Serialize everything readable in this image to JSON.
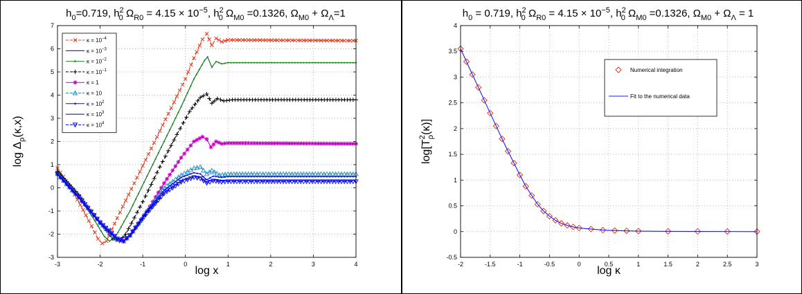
{
  "figure": {
    "border_color": "#000000"
  },
  "chart_data": [
    {
      "type": "line",
      "title": "h0=0.719, h0² ΩR0 = 4.15 × 10⁻⁵, h0² ΩM0 =0.1326, ΩM0 + ΩΛ=1",
      "title_parts": {
        "h0": "h",
        "h0_sub": "0",
        "h0_val": "=0.719, ",
        "hR": "h",
        "hR_sup": "2",
        "hR_sub": "0",
        "omegaR": " Ω",
        "omegaR_sub": "R0",
        "omegaR_val": " = 4.15 × 10",
        "omegaR_exp": "−5",
        "hM_sep": ", ",
        "hM": "h",
        "hM_sup": "2",
        "hM_sub": "0",
        "omegaM": " Ω",
        "omegaM_sub": "M0",
        "omegaM_val": " =0.1326, Ω",
        "omegaM2_sub": "M0",
        "plus": " + Ω",
        "lambda_sub": "Λ",
        "end": "=1"
      },
      "xlabel": "log x",
      "ylabel_parts": {
        "base": "log Δ",
        "sub": "ρ",
        "tail": "(κ,x)"
      },
      "xlim": [
        -3,
        4
      ],
      "ylim": [
        -3,
        7
      ],
      "xticks": [
        "-3",
        "-2",
        "-1",
        "0",
        "1",
        "2",
        "3",
        "4"
      ],
      "yticks": [
        "-3",
        "-2",
        "-1",
        "0",
        "1",
        "2",
        "3",
        "4",
        "5",
        "6",
        "7"
      ],
      "grid": true,
      "legend_position": "top-left",
      "series": [
        {
          "name": "κ = 10⁻⁴",
          "label_base": "κ = 10",
          "label_exp": "−4",
          "color": "#e03c1c",
          "marker": "x",
          "line": "dash",
          "points": [
            [
              -3,
              0.85
            ],
            [
              -2.8,
              0.3
            ],
            [
              -2.6,
              -0.3
            ],
            [
              -2.4,
              -0.95
            ],
            [
              -2.2,
              -1.65
            ],
            [
              -2.05,
              -2.2
            ],
            [
              -1.95,
              -2.4
            ],
            [
              -1.85,
              -2.3
            ],
            [
              -1.6,
              -1.3
            ],
            [
              -1.2,
              0.2
            ],
            [
              -0.8,
              1.7
            ],
            [
              -0.4,
              3.2
            ],
            [
              0,
              4.7
            ],
            [
              0.2,
              5.6
            ],
            [
              0.4,
              6.4
            ],
            [
              0.5,
              6.65
            ],
            [
              0.62,
              6.15
            ],
            [
              0.72,
              6.45
            ],
            [
              0.85,
              6.3
            ],
            [
              1,
              6.38
            ],
            [
              4,
              6.35
            ]
          ]
        },
        {
          "name": "κ = 10⁻³",
          "label_base": "κ = 10",
          "label_exp": "−3",
          "color": "#000080",
          "marker": "none",
          "line": "solid",
          "points": [
            [
              -3,
              0.75
            ],
            [
              -2.6,
              -0.1
            ],
            [
              -2.2,
              -1.2
            ],
            [
              -1.9,
              -2.1
            ],
            [
              -1.78,
              -2.3
            ],
            [
              -1.65,
              -2.15
            ],
            [
              -1.3,
              -1
            ],
            [
              -0.9,
              0.5
            ],
            [
              -0.5,
              2
            ],
            [
              -0.1,
              3.5
            ],
            [
              0.2,
              4.7
            ],
            [
              0.45,
              5.5
            ],
            [
              0.52,
              5.65
            ],
            [
              0.62,
              5.2
            ],
            [
              0.72,
              5.45
            ],
            [
              0.85,
              5.35
            ],
            [
              1,
              5.4
            ],
            [
              4,
              5.4
            ]
          ]
        },
        {
          "name": "κ = 10⁻²",
          "label_base": "κ = 10",
          "label_exp": "−2",
          "color": "#1a8a1a",
          "marker": "dot",
          "line": "solid",
          "points": [
            [
              -3,
              0.75
            ],
            [
              -2.6,
              -0.1
            ],
            [
              -2.2,
              -1.2
            ],
            [
              -1.9,
              -2.1
            ],
            [
              -1.78,
              -2.3
            ],
            [
              -1.65,
              -2.15
            ],
            [
              -1.3,
              -1
            ],
            [
              -0.9,
              0.5
            ],
            [
              -0.5,
              2
            ],
            [
              -0.1,
              3.5
            ],
            [
              0.2,
              4.7
            ],
            [
              0.45,
              5.5
            ],
            [
              0.52,
              5.65
            ],
            [
              0.62,
              5.2
            ],
            [
              0.72,
              5.45
            ],
            [
              0.85,
              5.35
            ],
            [
              1,
              5.4
            ],
            [
              4,
              5.4
            ]
          ]
        },
        {
          "name": "κ = 10⁻¹",
          "label_base": "κ = 10",
          "label_exp": "−1",
          "color": "#000000",
          "marker": "+",
          "line": "dash",
          "points": [
            [
              -3,
              0.7
            ],
            [
              -2.5,
              -0.3
            ],
            [
              -2,
              -1.5
            ],
            [
              -1.7,
              -2.2
            ],
            [
              -1.55,
              -2.3
            ],
            [
              -1.4,
              -2
            ],
            [
              -1,
              -0.6
            ],
            [
              -0.6,
              0.9
            ],
            [
              -0.2,
              2.3
            ],
            [
              0.1,
              3.3
            ],
            [
              0.35,
              3.9
            ],
            [
              0.5,
              4.05
            ],
            [
              0.62,
              3.65
            ],
            [
              0.75,
              3.85
            ],
            [
              0.9,
              3.75
            ],
            [
              1.1,
              3.8
            ],
            [
              4,
              3.8
            ]
          ]
        },
        {
          "name": "κ = 1",
          "label_base": "κ = 1",
          "label_exp": "",
          "color": "#c000c0",
          "marker": "star",
          "line": "solid",
          "points": [
            [
              -3,
              0.6
            ],
            [
              -2.5,
              -0.4
            ],
            [
              -2,
              -1.5
            ],
            [
              -1.6,
              -2.2
            ],
            [
              -1.45,
              -2.3
            ],
            [
              -1.3,
              -2.05
            ],
            [
              -0.9,
              -1
            ],
            [
              -0.5,
              0.2
            ],
            [
              -0.1,
              1.3
            ],
            [
              0.2,
              2
            ],
            [
              0.4,
              2.2
            ],
            [
              0.5,
              2.1
            ],
            [
              0.6,
              1.75
            ],
            [
              0.72,
              2
            ],
            [
              0.85,
              1.9
            ],
            [
              1,
              1.93
            ],
            [
              4,
              1.9
            ]
          ]
        },
        {
          "name": "κ = 10",
          "label_base": "κ = 10",
          "label_exp": "",
          "color": "#1e90c8",
          "marker": "triangle",
          "line": "dash",
          "points": [
            [
              -3,
              0.6
            ],
            [
              -2.5,
              -0.4
            ],
            [
              -2,
              -1.5
            ],
            [
              -1.6,
              -2.2
            ],
            [
              -1.45,
              -2.3
            ],
            [
              -1.3,
              -2.05
            ],
            [
              -0.9,
              -1
            ],
            [
              -0.5,
              0
            ],
            [
              -0.1,
              0.55
            ],
            [
              0.2,
              0.85
            ],
            [
              0.35,
              0.9
            ],
            [
              0.5,
              0.6
            ],
            [
              0.62,
              0.75
            ],
            [
              0.8,
              0.55
            ],
            [
              1,
              0.6
            ],
            [
              4,
              0.6
            ]
          ]
        },
        {
          "name": "κ = 10²",
          "label_base": "κ = 10",
          "label_exp": "2",
          "color": "#0000ff",
          "marker": "dot",
          "line": "solid",
          "points": [
            [
              -3,
              0.6
            ],
            [
              -2.5,
              -0.4
            ],
            [
              -2,
              -1.5
            ],
            [
              -1.6,
              -2.2
            ],
            [
              -1.45,
              -2.3
            ],
            [
              -1.3,
              -2.05
            ],
            [
              -0.9,
              -1
            ],
            [
              -0.5,
              -0.1
            ],
            [
              -0.1,
              0.45
            ],
            [
              0.2,
              0.65
            ],
            [
              0.35,
              0.6
            ],
            [
              0.5,
              0.35
            ],
            [
              0.65,
              0.5
            ],
            [
              0.85,
              0.45
            ],
            [
              1,
              0.48
            ],
            [
              4,
              0.48
            ]
          ]
        },
        {
          "name": "κ = 10³",
          "label_base": "κ = 10",
          "label_exp": "3",
          "color": "#000080",
          "marker": "none",
          "line": "solid",
          "points": [
            [
              -3,
              0.6
            ],
            [
              -2.5,
              -0.4
            ],
            [
              -2,
              -1.5
            ],
            [
              -1.6,
              -2.2
            ],
            [
              -1.45,
              -2.3
            ],
            [
              -1.3,
              -2.05
            ],
            [
              -0.9,
              -1.05
            ],
            [
              -0.5,
              -0.2
            ],
            [
              -0.1,
              0.3
            ],
            [
              0.2,
              0.5
            ],
            [
              0.35,
              0.45
            ],
            [
              0.5,
              0.25
            ],
            [
              0.65,
              0.35
            ],
            [
              0.85,
              0.3
            ],
            [
              1,
              0.32
            ],
            [
              4,
              0.32
            ]
          ]
        },
        {
          "name": "κ = 10⁴",
          "label_base": "κ = 10",
          "label_exp": "4",
          "color": "#0000ff",
          "marker": "triangle-down",
          "line": "dash",
          "points": [
            [
              -3,
              0.6
            ],
            [
              -2.5,
              -0.4
            ],
            [
              -2,
              -1.5
            ],
            [
              -1.6,
              -2.2
            ],
            [
              -1.45,
              -2.3
            ],
            [
              -1.3,
              -2.05
            ],
            [
              -0.9,
              -1.1
            ],
            [
              -0.5,
              -0.25
            ],
            [
              -0.1,
              0.25
            ],
            [
              0.2,
              0.45
            ],
            [
              0.35,
              0.4
            ],
            [
              0.5,
              0.2
            ],
            [
              0.65,
              0.3
            ],
            [
              0.85,
              0.25
            ],
            [
              1,
              0.27
            ],
            [
              4,
              0.27
            ]
          ]
        }
      ]
    },
    {
      "type": "line",
      "title_parts": {
        "h0": "h",
        "h0_sub": "0",
        "h0_val": " = 0.719, ",
        "hR": "h",
        "hR_sup": "2",
        "hR_sub": "0",
        "omegaR": " Ω",
        "omegaR_sub": "R0",
        "omegaR_val": " = 4.15 × 10",
        "omegaR_exp": "−5",
        "hM_sep": ", ",
        "hM": "h",
        "hM_sup": "2",
        "hM_sub": "0",
        "omegaM": " Ω",
        "omegaM_sub": "M0",
        "omegaM_val": " =0.1326, Ω",
        "omegaM2_sub": "M0",
        "plus": " + Ω",
        "lambda_sub": "Λ",
        "end": " = 1"
      },
      "xlabel": "log κ",
      "ylabel_parts": {
        "base": "log[T",
        "sup": "2",
        "sub": "ρ",
        "tail": "(κ)]"
      },
      "xlim": [
        -2,
        3
      ],
      "ylim": [
        -0.5,
        4
      ],
      "xticks": [
        "-2",
        "-1.5",
        "-1",
        "-0.5",
        "0",
        "0.5",
        "1",
        "1.5",
        "2",
        "2.5",
        "3"
      ],
      "yticks": [
        "-0.5",
        "0",
        "0.5",
        "1",
        "1.5",
        "2",
        "2.5",
        "3",
        "3.5",
        "4"
      ],
      "grid": true,
      "legend_position": "top-right",
      "series": [
        {
          "name": "Numerical integration",
          "color": "#e03c1c",
          "marker": "diamond",
          "line": "none",
          "points": [
            [
              -2,
              3.55
            ],
            [
              -1.9,
              3.3
            ],
            [
              -1.8,
              3.05
            ],
            [
              -1.7,
              2.8
            ],
            [
              -1.6,
              2.55
            ],
            [
              -1.5,
              2.3
            ],
            [
              -1.4,
              2.05
            ],
            [
              -1.3,
              1.8
            ],
            [
              -1.2,
              1.56
            ],
            [
              -1.1,
              1.33
            ],
            [
              -1,
              1.1
            ],
            [
              -0.9,
              0.88
            ],
            [
              -0.8,
              0.7
            ],
            [
              -0.7,
              0.53
            ],
            [
              -0.6,
              0.4
            ],
            [
              -0.5,
              0.3
            ],
            [
              -0.4,
              0.22
            ],
            [
              -0.3,
              0.16
            ],
            [
              -0.2,
              0.12
            ],
            [
              -0.1,
              0.09
            ],
            [
              0,
              0.07
            ],
            [
              0.2,
              0.05
            ],
            [
              0.4,
              0.03
            ],
            [
              0.6,
              0.02
            ],
            [
              0.8,
              0.015
            ],
            [
              1,
              0.01
            ],
            [
              1.5,
              0.005
            ],
            [
              2,
              0.003
            ],
            [
              2.5,
              0.002
            ],
            [
              3,
              0
            ]
          ]
        },
        {
          "name": "Fit to the numerical data",
          "color": "#1a1aff",
          "marker": "none",
          "line": "solid",
          "points": [
            [
              -2,
              3.55
            ],
            [
              -1.9,
              3.3
            ],
            [
              -1.8,
              3.05
            ],
            [
              -1.7,
              2.8
            ],
            [
              -1.6,
              2.55
            ],
            [
              -1.5,
              2.3
            ],
            [
              -1.4,
              2.05
            ],
            [
              -1.3,
              1.8
            ],
            [
              -1.2,
              1.56
            ],
            [
              -1.1,
              1.33
            ],
            [
              -1,
              1.1
            ],
            [
              -0.9,
              0.88
            ],
            [
              -0.8,
              0.7
            ],
            [
              -0.7,
              0.53
            ],
            [
              -0.6,
              0.4
            ],
            [
              -0.5,
              0.3
            ],
            [
              -0.4,
              0.22
            ],
            [
              -0.3,
              0.16
            ],
            [
              -0.2,
              0.12
            ],
            [
              -0.1,
              0.09
            ],
            [
              0,
              0.07
            ],
            [
              0.2,
              0.05
            ],
            [
              0.4,
              0.03
            ],
            [
              0.6,
              0.02
            ],
            [
              0.8,
              0.015
            ],
            [
              1,
              0.01
            ],
            [
              1.5,
              0.005
            ],
            [
              2,
              0.003
            ],
            [
              2.5,
              0.002
            ],
            [
              3,
              0
            ]
          ]
        }
      ]
    }
  ]
}
